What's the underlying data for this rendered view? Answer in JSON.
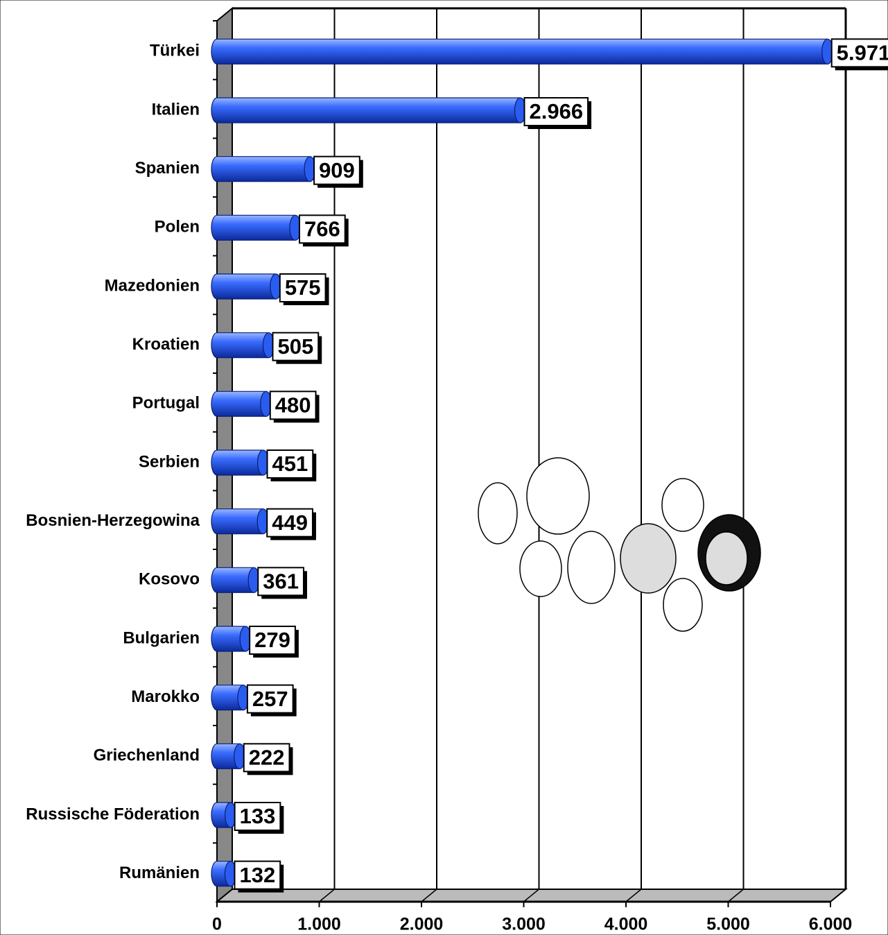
{
  "chart_data": {
    "type": "bar",
    "orientation": "horizontal",
    "color": "#2a5cf0",
    "categories": [
      "Türkei",
      "Italien",
      "Spanien",
      "Polen",
      "Mazedonien",
      "Kroatien",
      "Portugal",
      "Serbien",
      "Bosnien-Herzegowina",
      "Kosovo",
      "Bulgarien",
      "Marokko",
      "Griechenland",
      "Russische Föderation",
      "Rumänien"
    ],
    "values": [
      5971,
      2966,
      909,
      766,
      575,
      505,
      480,
      451,
      449,
      361,
      279,
      257,
      222,
      133,
      132
    ],
    "value_labels": [
      "5.971",
      "2.966",
      "909",
      "766",
      "575",
      "505",
      "480",
      "451",
      "449",
      "361",
      "279",
      "257",
      "222",
      "133",
      "132"
    ],
    "xlim": [
      0,
      6000
    ],
    "xticks": [
      0,
      {
        "value": 1000,
        "label": "1.000"
      },
      {
        "value": 2000,
        "label": "2.000"
      },
      {
        "value": 3000,
        "label": "3.000"
      },
      {
        "value": 4000,
        "label": "4.000"
      },
      {
        "value": 5000,
        "label": "5.000"
      },
      {
        "value": 6000,
        "label": "6.000"
      }
    ],
    "grid": true
  }
}
